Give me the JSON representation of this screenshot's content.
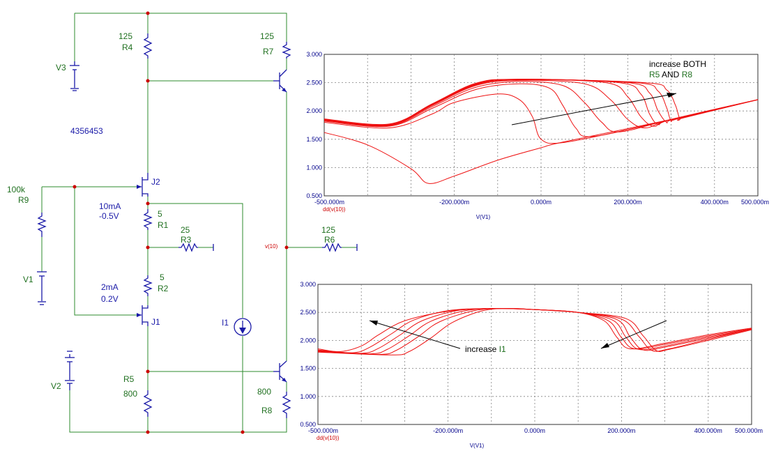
{
  "schematic": {
    "components": {
      "R4": {
        "name": "R4",
        "value": "125"
      },
      "R7": {
        "name": "R7",
        "value": "125"
      },
      "R9": {
        "name": "R9",
        "value": "100k"
      },
      "R1": {
        "name": "R1",
        "value": "5"
      },
      "R3": {
        "name": "R3",
        "value": "25"
      },
      "R2": {
        "name": "R2",
        "value": "5"
      },
      "R6": {
        "name": "R6",
        "value": "125"
      },
      "R5": {
        "name": "R5",
        "value": "800"
      },
      "R8": {
        "name": "R8",
        "value": "800"
      },
      "V1": {
        "name": "V1"
      },
      "V2": {
        "name": "V2"
      },
      "V3": {
        "name": "V3"
      },
      "J1": {
        "name": "J1"
      },
      "J2": {
        "name": "J2"
      },
      "I1": {
        "name": "I1"
      }
    },
    "annotations": {
      "part_number": "4356453",
      "j2_current": "10mA",
      "j2_voltage": "-0.5V",
      "j1_current": "2mA",
      "j1_voltage": "0.2V",
      "node_label": "v(10)"
    }
  },
  "chart_data": [
    {
      "type": "line",
      "xlabel": "V(V1)",
      "ylabel": "dd(v(10))",
      "xlim": [
        -0.5,
        0.5
      ],
      "ylim": [
        0.5,
        3.0
      ],
      "x_ticks": [
        "-500.000m",
        "-200.000m",
        "0.000m",
        "200.000m",
        "400.000m",
        "500.000m"
      ],
      "y_ticks": [
        "0.500",
        "1.000",
        "1.500",
        "2.000",
        "2.500",
        "3.000"
      ],
      "grid": true,
      "annotation": {
        "line1": "increase BOTH",
        "line2_a": "R5",
        "line2_b": "AND",
        "line2_c": "R8"
      },
      "series": [
        {
          "x": [
            -0.5,
            -0.4,
            -0.3,
            -0.26,
            -0.2,
            -0.1,
            0.0,
            0.05,
            0.3,
            0.5
          ],
          "y": [
            1.62,
            1.4,
            0.98,
            0.72,
            0.85,
            1.13,
            1.35,
            1.45,
            1.85,
            2.2
          ]
        },
        {
          "x": [
            -0.5,
            -0.35,
            -0.25,
            -0.2,
            -0.1,
            -0.05,
            -0.02,
            0.0,
            0.05,
            0.2,
            0.3,
            0.5
          ],
          "y": [
            1.8,
            1.7,
            1.95,
            2.15,
            2.3,
            2.2,
            1.9,
            1.5,
            1.44,
            1.67,
            1.85,
            2.2
          ]
        },
        {
          "x": [
            -0.5,
            -0.35,
            -0.25,
            -0.15,
            -0.05,
            0.02,
            0.05,
            0.08,
            0.12,
            0.3,
            0.5
          ],
          "y": [
            1.82,
            1.73,
            2.05,
            2.38,
            2.48,
            2.4,
            2.1,
            1.7,
            1.55,
            1.85,
            2.2
          ]
        },
        {
          "x": [
            -0.5,
            -0.35,
            -0.25,
            -0.15,
            -0.05,
            0.05,
            0.1,
            0.14,
            0.18,
            0.3,
            0.5
          ],
          "y": [
            1.83,
            1.74,
            2.08,
            2.42,
            2.52,
            2.45,
            2.15,
            1.8,
            1.63,
            1.85,
            2.2
          ]
        },
        {
          "x": [
            -0.5,
            -0.35,
            -0.25,
            -0.15,
            -0.05,
            0.1,
            0.16,
            0.2,
            0.24,
            0.3,
            0.5
          ],
          "y": [
            1.84,
            1.75,
            2.1,
            2.45,
            2.54,
            2.48,
            2.2,
            1.85,
            1.7,
            1.85,
            2.2
          ]
        },
        {
          "x": [
            -0.5,
            -0.35,
            -0.25,
            -0.15,
            -0.05,
            0.15,
            0.2,
            0.23,
            0.26,
            0.3,
            0.5
          ],
          "y": [
            1.84,
            1.75,
            2.11,
            2.46,
            2.55,
            2.5,
            2.25,
            1.9,
            1.73,
            1.85,
            2.2
          ]
        },
        {
          "x": [
            -0.5,
            -0.35,
            -0.25,
            -0.15,
            -0.05,
            0.18,
            0.23,
            0.25,
            0.27,
            0.3,
            0.5
          ],
          "y": [
            1.85,
            1.75,
            2.12,
            2.47,
            2.56,
            2.5,
            2.3,
            1.95,
            1.76,
            1.85,
            2.2
          ]
        },
        {
          "x": [
            -0.5,
            -0.35,
            -0.25,
            -0.15,
            -0.05,
            0.2,
            0.25,
            0.27,
            0.29,
            0.31,
            0.5
          ],
          "y": [
            1.85,
            1.76,
            2.12,
            2.48,
            2.56,
            2.5,
            2.32,
            2.0,
            1.8,
            1.86,
            2.2
          ]
        },
        {
          "x": [
            -0.5,
            -0.35,
            -0.25,
            -0.15,
            -0.05,
            0.22,
            0.27,
            0.29,
            0.3,
            0.32,
            0.5
          ],
          "y": [
            1.85,
            1.76,
            2.13,
            2.48,
            2.56,
            2.5,
            2.35,
            2.05,
            1.83,
            1.87,
            2.2
          ]
        },
        {
          "x": [
            -0.5,
            -0.35,
            -0.25,
            -0.15,
            -0.05,
            0.24,
            0.29,
            0.31,
            0.32,
            0.33,
            0.5
          ],
          "y": [
            1.86,
            1.77,
            2.13,
            2.49,
            2.56,
            2.5,
            2.37,
            2.1,
            1.86,
            1.88,
            2.2
          ]
        }
      ]
    },
    {
      "type": "line",
      "xlabel": "V(V1)",
      "ylabel": "dd(v(10))",
      "xlim": [
        -0.5,
        0.5
      ],
      "ylim": [
        0.5,
        3.0
      ],
      "x_ticks": [
        "-500.000m",
        "-200.000m",
        "0.000m",
        "200.000m",
        "400.000m",
        "500.000m"
      ],
      "y_ticks": [
        "0.500",
        "1.000",
        "1.500",
        "2.000",
        "2.500",
        "3.000"
      ],
      "grid": true,
      "annotation": {
        "line1": "increase",
        "line2_a": "I1",
        "line2_b": "",
        "line2_c": ""
      },
      "series": [
        {
          "x": [
            -0.5,
            -0.45,
            -0.4,
            -0.36,
            -0.3,
            -0.2,
            -0.1,
            0.0,
            0.1,
            0.16,
            0.19,
            0.22,
            0.3,
            0.4,
            0.5
          ],
          "y": [
            1.85,
            1.8,
            1.9,
            2.1,
            2.35,
            2.52,
            2.57,
            2.55,
            2.5,
            2.35,
            2.05,
            1.85,
            1.95,
            2.1,
            2.22
          ]
        },
        {
          "x": [
            -0.5,
            -0.42,
            -0.38,
            -0.33,
            -0.28,
            -0.2,
            -0.1,
            0.0,
            0.1,
            0.17,
            0.2,
            0.23,
            0.3,
            0.4,
            0.5
          ],
          "y": [
            1.83,
            1.78,
            1.88,
            2.12,
            2.36,
            2.53,
            2.57,
            2.55,
            2.5,
            2.35,
            2.05,
            1.85,
            1.93,
            2.08,
            2.21
          ]
        },
        {
          "x": [
            -0.5,
            -0.4,
            -0.36,
            -0.31,
            -0.26,
            -0.18,
            -0.1,
            0.0,
            0.1,
            0.18,
            0.21,
            0.24,
            0.3,
            0.4,
            0.5
          ],
          "y": [
            1.82,
            1.77,
            1.86,
            2.1,
            2.35,
            2.53,
            2.57,
            2.55,
            2.5,
            2.36,
            2.06,
            1.84,
            1.9,
            2.06,
            2.2
          ]
        },
        {
          "x": [
            -0.5,
            -0.38,
            -0.34,
            -0.29,
            -0.24,
            -0.16,
            -0.08,
            0.0,
            0.1,
            0.19,
            0.22,
            0.25,
            0.3,
            0.4,
            0.5
          ],
          "y": [
            1.81,
            1.76,
            1.84,
            2.08,
            2.34,
            2.53,
            2.57,
            2.55,
            2.5,
            2.37,
            2.06,
            1.83,
            1.88,
            2.04,
            2.2
          ]
        },
        {
          "x": [
            -0.5,
            -0.36,
            -0.32,
            -0.27,
            -0.22,
            -0.14,
            -0.07,
            0.0,
            0.1,
            0.2,
            0.24,
            0.27,
            0.31,
            0.4,
            0.5
          ],
          "y": [
            1.8,
            1.75,
            1.82,
            2.06,
            2.33,
            2.53,
            2.57,
            2.55,
            2.5,
            2.38,
            2.07,
            1.82,
            1.85,
            2.02,
            2.2
          ]
        },
        {
          "x": [
            -0.5,
            -0.33,
            -0.29,
            -0.24,
            -0.19,
            -0.12,
            -0.06,
            0.0,
            0.1,
            0.21,
            0.25,
            0.28,
            0.31,
            0.4,
            0.5
          ],
          "y": [
            1.79,
            1.74,
            1.8,
            2.04,
            2.32,
            2.53,
            2.57,
            2.55,
            2.5,
            2.39,
            2.08,
            1.82,
            1.84,
            2.0,
            2.19
          ]
        }
      ]
    }
  ]
}
